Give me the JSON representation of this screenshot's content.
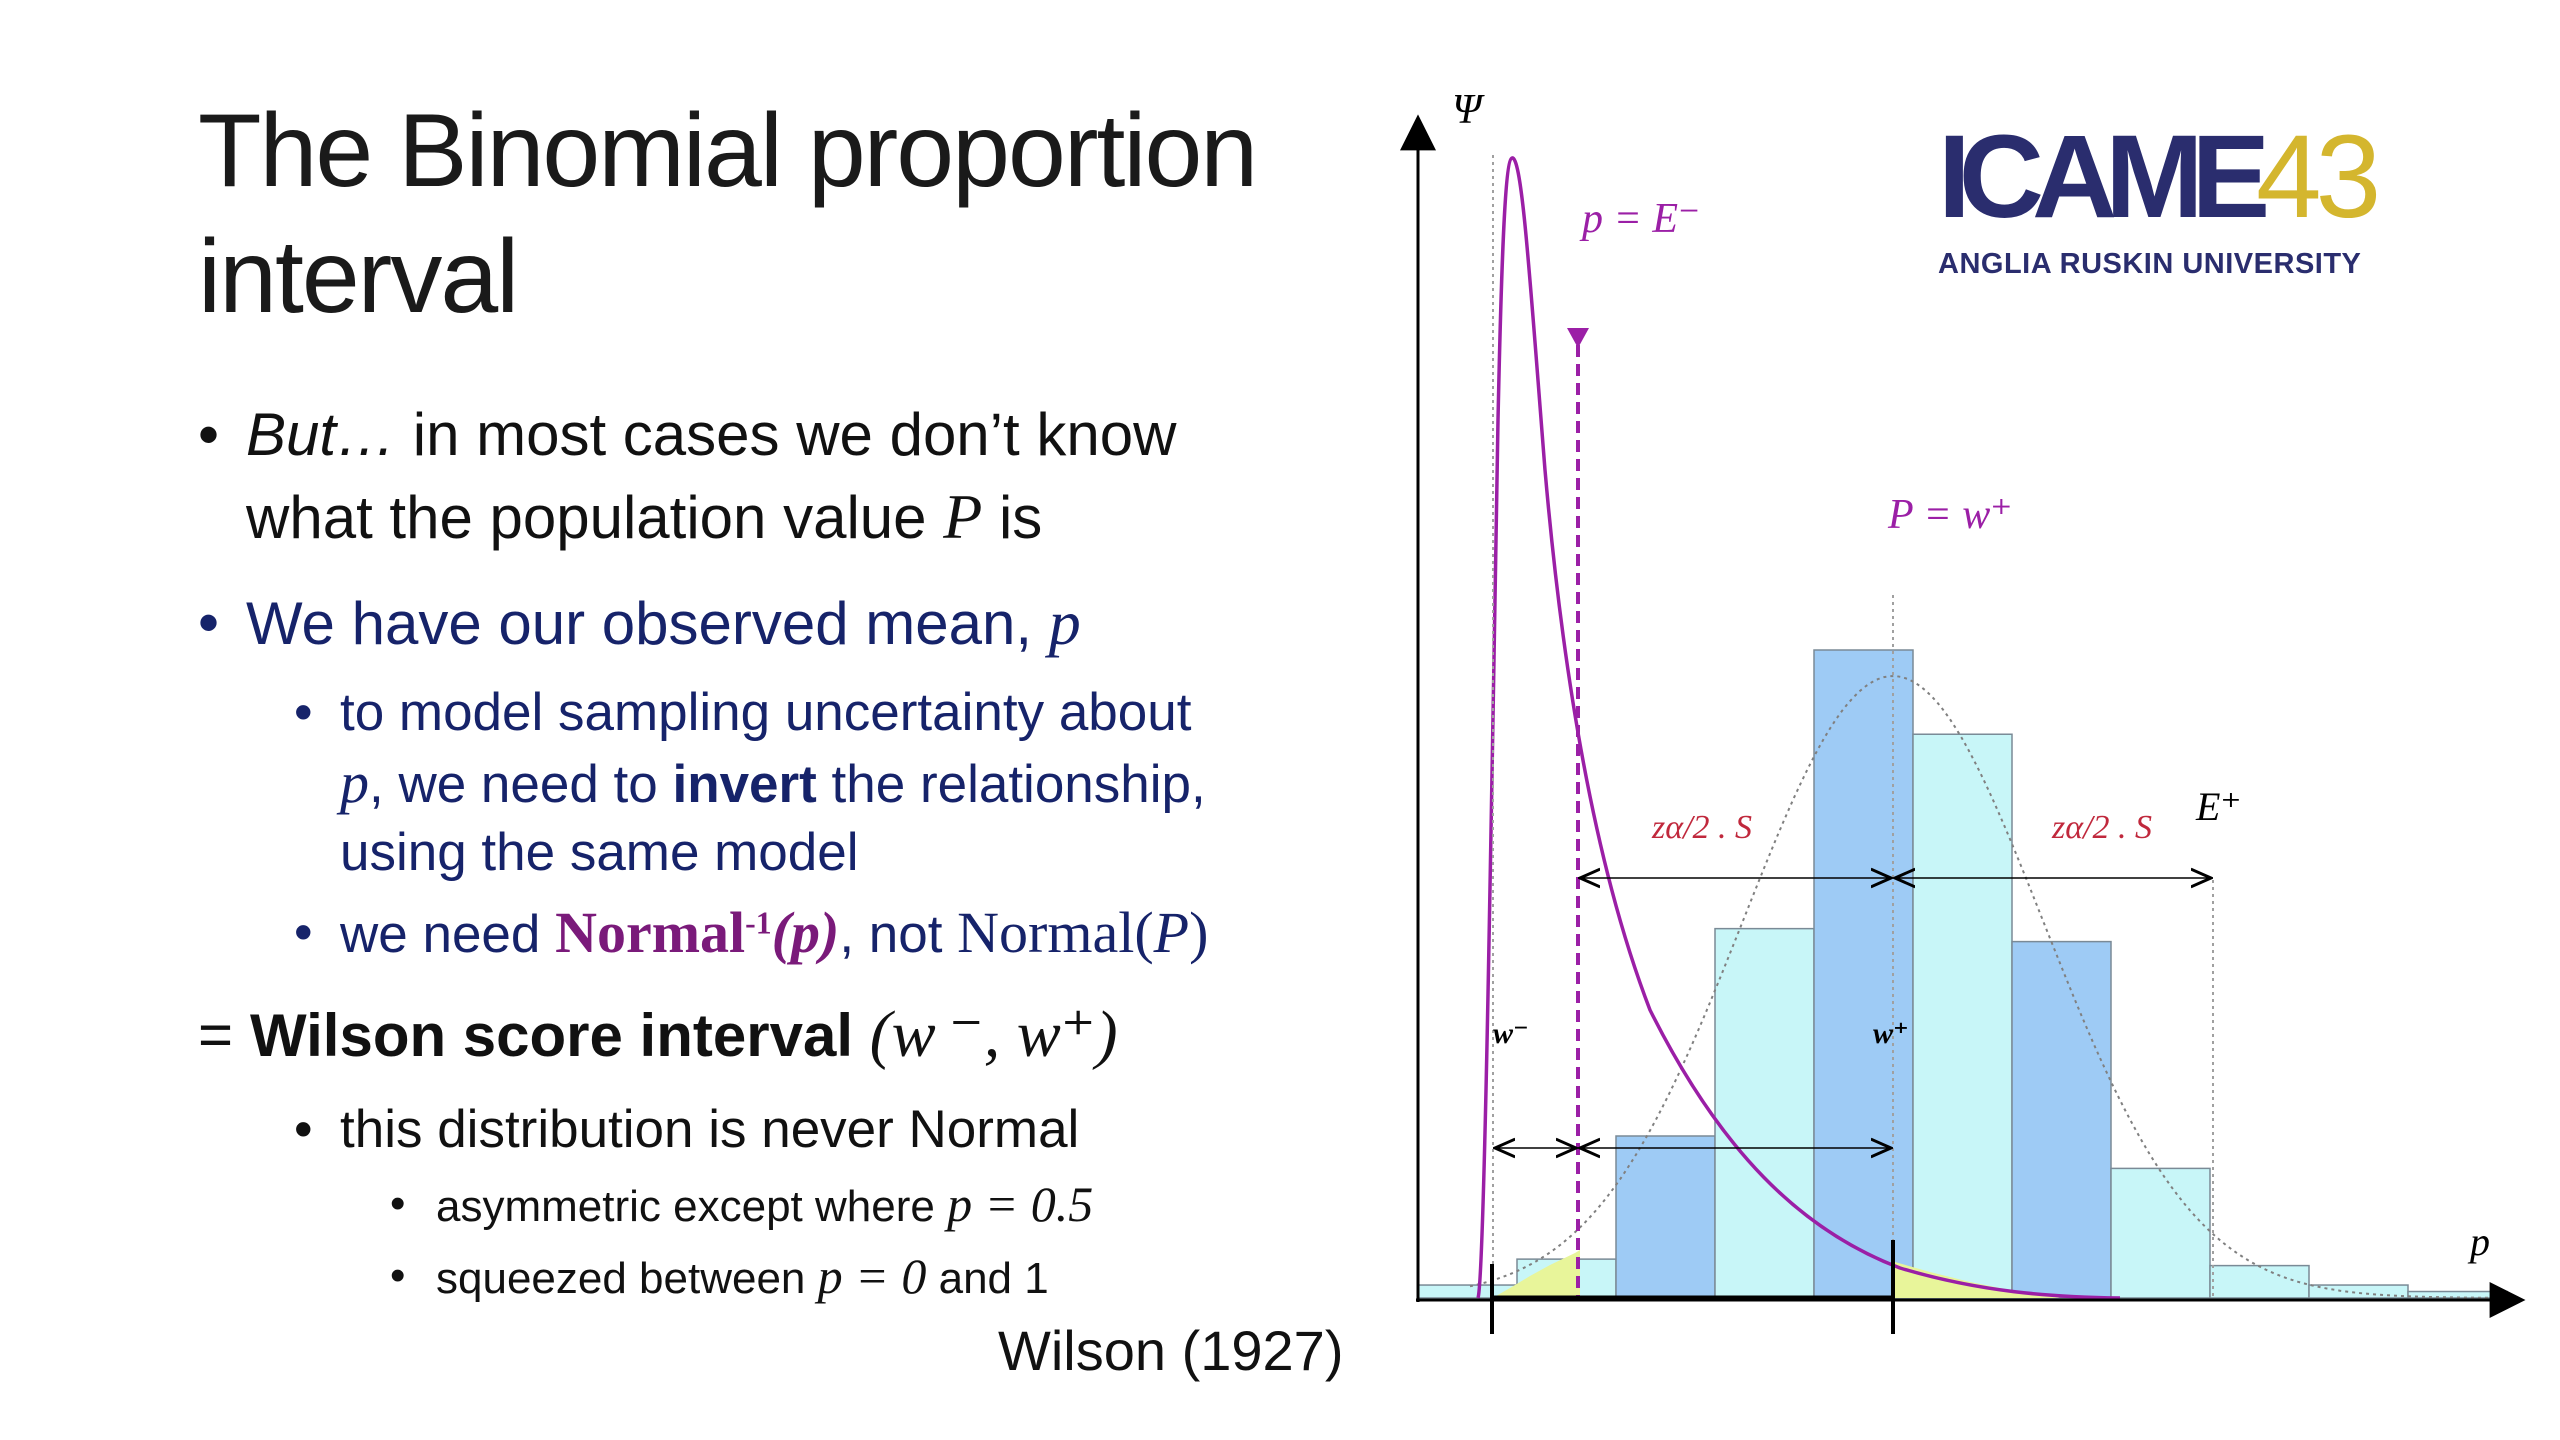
{
  "title": {
    "line1": "The Binomial proportion",
    "line2": "interval"
  },
  "bullets": {
    "b1": {
      "marker": "•",
      "pre_italic": "But…",
      "text1": " in most cases we don’t know",
      "text2": "what the population value ",
      "var": "P",
      "post": " is"
    },
    "b2": {
      "marker": "•",
      "text": "We have our observed mean, ",
      "var": "p"
    },
    "b2a": {
      "marker": "•",
      "line1": "to model sampling uncertainty about",
      "var": "p",
      "line2a": ", we need to ",
      "bold": "invert",
      "line2b": " the relationship,",
      "line3": "using the same model"
    },
    "b2b": {
      "marker": "•",
      "pre": "we need ",
      "normal_inv": "Normal",
      "inv_sup": "-1",
      "inv_arg": "(p)",
      "mid": ", not ",
      "normal": "Normal(",
      "normal_var": "P",
      "normal_close": ")"
    },
    "b3": {
      "marker": "=",
      "bold": "Wilson score interval",
      "interval": "(w ⁻, w⁺)"
    },
    "b3a": {
      "marker": "•",
      "text": "this distribution is never Normal"
    },
    "b3a1": {
      "marker": "•",
      "text": "asymmetric except where ",
      "eq": "p = 0.5"
    },
    "b3a2": {
      "marker": "•",
      "text": "squeezed between ",
      "eq": "p = 0",
      "post": " and 1"
    }
  },
  "citation": "Wilson (1927)",
  "logo": {
    "main": "ICAME",
    "number": "43",
    "sub": "ANGLIA RUSKIN UNIVERSITY",
    "colors": {
      "main": "#2a2d6e",
      "number": "#d4b62e"
    }
  },
  "chart_data": {
    "type": "bar",
    "y_axis_label": "Ψ",
    "x_axis_label": "p",
    "bars": [
      {
        "value": 0.02,
        "color": "#c8f6f8"
      },
      {
        "value": 0.06,
        "color": "#c8f6f8"
      },
      {
        "value": 0.25,
        "color": "#9ecbf5"
      },
      {
        "value": 0.57,
        "color": "#c8f6f8"
      },
      {
        "value": 1.0,
        "color": "#9ecbf5"
      },
      {
        "value": 0.87,
        "color": "#c8f6f8"
      },
      {
        "value": 0.55,
        "color": "#9ecbf5"
      },
      {
        "value": 0.2,
        "color": "#c8f6f8"
      },
      {
        "value": 0.05,
        "color": "#c8f6f8"
      },
      {
        "value": 0.02,
        "color": "#c8f6f8"
      },
      {
        "value": 0.01,
        "color": "#c8f6f8"
      }
    ],
    "annotations": {
      "p_eq_e_minus": "p = E⁻",
      "P_eq_w_plus": "P = w⁺",
      "z_s_left": "zα/2 . S",
      "z_s_right": "zα/2 . S",
      "e_plus": "E⁺",
      "w_minus": "w⁻",
      "w_plus": "w⁺"
    },
    "colors": {
      "purple": "#9b1fa6",
      "axis": "#000000",
      "shade": "#e8f59a",
      "dotted": "#808080"
    }
  }
}
